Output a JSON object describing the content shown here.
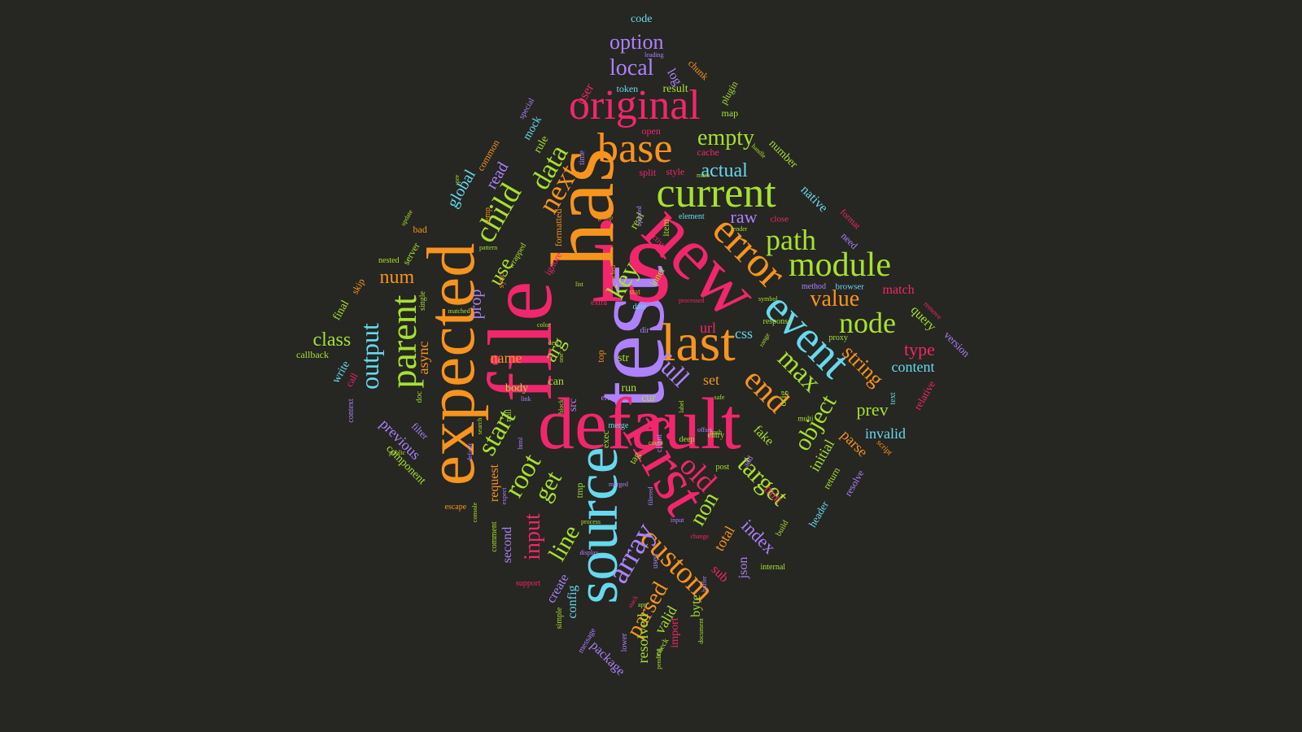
{
  "palette": {
    "background": "#262622",
    "pink": "#f2266d",
    "orange": "#f7941e",
    "green": "#a6e22e",
    "cyan": "#66d9ef",
    "purple": "#ae81ff"
  },
  "words": [
    {
      "text": "test",
      "color": "purple"
    },
    {
      "text": "is",
      "color": "pink"
    },
    {
      "text": "file",
      "color": "pink"
    },
    {
      "text": "has",
      "color": "orange"
    },
    {
      "text": "new",
      "color": "pink"
    },
    {
      "text": "default",
      "color": "pink"
    },
    {
      "text": "expected",
      "color": "orange"
    },
    {
      "text": "source",
      "color": "cyan"
    },
    {
      "text": "first",
      "color": "pink"
    },
    {
      "text": "last",
      "color": "orange"
    },
    {
      "text": "event",
      "color": "cyan"
    },
    {
      "text": "error",
      "color": "orange"
    },
    {
      "text": "current",
      "color": "green"
    },
    {
      "text": "original",
      "color": "pink"
    },
    {
      "text": "base",
      "color": "orange"
    },
    {
      "text": "module",
      "color": "green"
    },
    {
      "text": "parent",
      "color": "green"
    },
    {
      "text": "end",
      "color": "orange"
    },
    {
      "text": "custom",
      "color": "orange"
    },
    {
      "text": "child",
      "color": "green"
    },
    {
      "text": "data",
      "color": "green"
    },
    {
      "text": "next",
      "color": "orange"
    },
    {
      "text": "max",
      "color": "green"
    },
    {
      "text": "path",
      "color": "green"
    },
    {
      "text": "node",
      "color": "green"
    },
    {
      "text": "old",
      "color": "pink"
    },
    {
      "text": "array",
      "color": "purple"
    },
    {
      "text": "start",
      "color": "green"
    },
    {
      "text": "output",
      "color": "cyan"
    },
    {
      "text": "object",
      "color": "green"
    },
    {
      "text": "target",
      "color": "green"
    },
    {
      "text": "value",
      "color": "orange"
    },
    {
      "text": "full",
      "color": "purple"
    },
    {
      "text": "root",
      "color": "green"
    },
    {
      "text": "empty",
      "color": "green"
    },
    {
      "text": "key",
      "color": "green"
    },
    {
      "text": "get",
      "color": "green"
    },
    {
      "text": "line",
      "color": "green"
    },
    {
      "text": "input",
      "color": "pink"
    },
    {
      "text": "parsed",
      "color": "orange"
    },
    {
      "text": "non",
      "color": "green"
    },
    {
      "text": "string",
      "color": "orange"
    },
    {
      "text": "option",
      "color": "purple"
    },
    {
      "text": "local",
      "color": "purple"
    },
    {
      "text": "actual",
      "color": "cyan"
    },
    {
      "text": "raw",
      "color": "purple"
    },
    {
      "text": "class",
      "color": "green"
    },
    {
      "text": "num",
      "color": "orange"
    },
    {
      "text": "use",
      "color": "green"
    },
    {
      "text": "arg",
      "color": "green"
    },
    {
      "text": "name",
      "color": "orange"
    },
    {
      "text": "set",
      "color": "orange"
    },
    {
      "text": "index",
      "color": "purple"
    },
    {
      "text": "type",
      "color": "pink"
    },
    {
      "text": "content",
      "color": "cyan"
    },
    {
      "text": "prev",
      "color": "green"
    },
    {
      "text": "invalid",
      "color": "cyan"
    },
    {
      "text": "global",
      "color": "cyan"
    },
    {
      "text": "read",
      "color": "purple"
    },
    {
      "text": "async",
      "color": "orange"
    },
    {
      "text": "prop",
      "color": "purple"
    },
    {
      "text": "url",
      "color": "pink"
    },
    {
      "text": "css",
      "color": "cyan"
    },
    {
      "text": "min",
      "color": "pink"
    },
    {
      "text": "initial",
      "color": "green"
    },
    {
      "text": "parse",
      "color": "orange"
    },
    {
      "text": "fake",
      "color": "green"
    },
    {
      "text": "total",
      "color": "orange"
    },
    {
      "text": "json",
      "color": "purple"
    },
    {
      "text": "sub",
      "color": "pink"
    },
    {
      "text": "valid",
      "color": "green"
    },
    {
      "text": "resolved",
      "color": "green"
    },
    {
      "text": "byte",
      "color": "green"
    },
    {
      "text": "create",
      "color": "purple"
    },
    {
      "text": "config",
      "color": "cyan"
    },
    {
      "text": "second",
      "color": "purple"
    },
    {
      "text": "previous",
      "color": "purple"
    },
    {
      "text": "request",
      "color": "orange"
    },
    {
      "text": "component",
      "color": "green"
    },
    {
      "text": "package",
      "color": "purple"
    },
    {
      "text": "import",
      "color": "pink"
    },
    {
      "text": "query",
      "color": "green"
    },
    {
      "text": "match",
      "color": "pink"
    },
    {
      "text": "native",
      "color": "cyan"
    },
    {
      "text": "number",
      "color": "green"
    },
    {
      "text": "user",
      "color": "pink"
    },
    {
      "text": "log",
      "color": "purple"
    },
    {
      "text": "result",
      "color": "green"
    },
    {
      "text": "token",
      "color": "cyan"
    },
    {
      "text": "code",
      "color": "cyan"
    },
    {
      "text": "plugin",
      "color": "green"
    },
    {
      "text": "chunk",
      "color": "orange"
    },
    {
      "text": "map",
      "color": "green"
    },
    {
      "text": "mock",
      "color": "cyan"
    },
    {
      "text": "rule",
      "color": "green"
    },
    {
      "text": "common",
      "color": "orange"
    },
    {
      "text": "special",
      "color": "purple"
    },
    {
      "text": "open",
      "color": "pink"
    },
    {
      "text": "cache",
      "color": "pink"
    },
    {
      "text": "split",
      "color": "pink"
    },
    {
      "text": "style",
      "color": "pink"
    },
    {
      "text": "element",
      "color": "cyan"
    },
    {
      "text": "close",
      "color": "pink"
    },
    {
      "text": "format",
      "color": "pink"
    },
    {
      "text": "need",
      "color": "purple"
    },
    {
      "text": "browser",
      "color": "cyan"
    },
    {
      "text": "method",
      "color": "purple"
    },
    {
      "text": "remove",
      "color": "pink"
    },
    {
      "text": "version",
      "color": "purple"
    },
    {
      "text": "relative",
      "color": "pink"
    },
    {
      "text": "text",
      "color": "cyan"
    },
    {
      "text": "script",
      "color": "orange"
    },
    {
      "text": "resolve",
      "color": "purple"
    },
    {
      "text": "return",
      "color": "green"
    },
    {
      "text": "header",
      "color": "cyan"
    },
    {
      "text": "build",
      "color": "green"
    },
    {
      "text": "internal",
      "color": "green"
    },
    {
      "text": "final",
      "color": "green"
    },
    {
      "text": "skip",
      "color": "orange"
    },
    {
      "text": "callback",
      "color": "green"
    },
    {
      "text": "write",
      "color": "cyan"
    },
    {
      "text": "call",
      "color": "pink"
    },
    {
      "text": "context",
      "color": "purple"
    },
    {
      "text": "doc",
      "color": "green"
    },
    {
      "text": "filter",
      "color": "purple"
    },
    {
      "text": "escape",
      "color": "orange"
    },
    {
      "text": "comment",
      "color": "green"
    },
    {
      "text": "support",
      "color": "pink"
    },
    {
      "text": "simple",
      "color": "green"
    },
    {
      "text": "message",
      "color": "purple"
    },
    {
      "text": "lower",
      "color": "purple"
    },
    {
      "text": "check",
      "color": "green"
    },
    {
      "text": "used",
      "color": "purple"
    },
    {
      "text": "run",
      "color": "green"
    },
    {
      "text": "body",
      "color": "green"
    },
    {
      "text": "can",
      "color": "green"
    },
    {
      "text": "src",
      "color": "purple"
    },
    {
      "text": "str",
      "color": "green"
    },
    {
      "text": "err",
      "color": "purple"
    },
    {
      "text": "cur",
      "color": "green"
    },
    {
      "text": "exec",
      "color": "green"
    },
    {
      "text": "merge",
      "color": "cyan"
    },
    {
      "text": "tag",
      "color": "green"
    },
    {
      "text": "tmp",
      "color": "green"
    },
    {
      "text": "post",
      "color": "green"
    },
    {
      "text": "add",
      "color": "purple"
    },
    {
      "text": "deep",
      "color": "green"
    },
    {
      "text": "orig",
      "color": "green"
    },
    {
      "text": "temp",
      "color": "orange"
    },
    {
      "text": "ignore",
      "color": "pink"
    },
    {
      "text": "real",
      "color": "green"
    },
    {
      "text": "item",
      "color": "green"
    },
    {
      "text": "inner",
      "color": "green"
    },
    {
      "text": "bad",
      "color": "orange"
    },
    {
      "text": "server",
      "color": "green"
    },
    {
      "text": "nested",
      "color": "green"
    },
    {
      "text": "single",
      "color": "green"
    },
    {
      "text": "date",
      "color": "cyan"
    },
    {
      "text": "top",
      "color": "orange"
    },
    {
      "text": "proxy",
      "color": "green"
    },
    {
      "text": "null",
      "color": "green"
    },
    {
      "text": "dir",
      "color": "purple"
    },
    {
      "text": "entry",
      "color": "green"
    },
    {
      "text": "count",
      "color": "green"
    },
    {
      "text": "client",
      "color": "purple"
    },
    {
      "text": "stat",
      "color": "orange"
    },
    {
      "text": "time",
      "color": "purple"
    },
    {
      "text": "sync",
      "color": "orange"
    },
    {
      "text": "app",
      "color": "green"
    },
    {
      "text": "multi",
      "color": "green"
    },
    {
      "text": "response",
      "color": "green"
    },
    {
      "text": "hash",
      "color": "green"
    },
    {
      "text": "pending",
      "color": "green"
    },
    {
      "text": "document",
      "color": "green"
    },
    {
      "text": "extra",
      "color": "pink"
    },
    {
      "text": "active",
      "color": "pink"
    },
    {
      "text": "handle",
      "color": "green"
    },
    {
      "text": "leading",
      "color": "purple"
    },
    {
      "text": "color",
      "color": "green"
    },
    {
      "text": "formatted",
      "color": "orange"
    },
    {
      "text": "wrapped",
      "color": "green"
    },
    {
      "text": "pattern",
      "color": "green"
    },
    {
      "text": "matched",
      "color": "green"
    },
    {
      "text": "update",
      "color": "green"
    },
    {
      "text": "display",
      "color": "purple"
    },
    {
      "text": "console",
      "color": "green"
    },
    {
      "text": "public",
      "color": "green"
    },
    {
      "text": "search",
      "color": "green"
    },
    {
      "text": "html",
      "color": "purple"
    },
    {
      "text": "buffer",
      "color": "purple"
    },
    {
      "text": "stack",
      "color": "pink"
    },
    {
      "text": "link",
      "color": "purple"
    },
    {
      "text": "block",
      "color": "green"
    },
    {
      "text": "label",
      "color": "green"
    },
    {
      "text": "safe",
      "color": "green"
    },
    {
      "text": "offset",
      "color": "purple"
    },
    {
      "text": "range",
      "color": "green"
    },
    {
      "text": "symbol",
      "color": "green"
    },
    {
      "text": "render",
      "color": "green"
    },
    {
      "text": "main",
      "color": "green"
    },
    {
      "text": "updated",
      "color": "purple"
    },
    {
      "text": "group",
      "color": "orange"
    },
    {
      "text": "cached",
      "color": "orange"
    },
    {
      "text": "pre",
      "color": "green"
    },
    {
      "text": "dest",
      "color": "green"
    },
    {
      "text": "one",
      "color": "green"
    },
    {
      "text": "processed",
      "color": "pink"
    },
    {
      "text": "default",
      "color": "purple"
    },
    {
      "text": "expect",
      "color": "purple"
    },
    {
      "text": "process",
      "color": "green"
    },
    {
      "text": "merged",
      "color": "purple"
    },
    {
      "text": "filtered",
      "color": "purple"
    },
    {
      "text": "input",
      "color": "purple"
    },
    {
      "text": "change",
      "color": "pink"
    },
    {
      "text": "list",
      "color": "green"
    },
    {
      "text": "state",
      "color": "purple"
    },
    {
      "text": "view",
      "color": "green"
    },
    {
      "text": "test",
      "color": "pink"
    }
  ]
}
